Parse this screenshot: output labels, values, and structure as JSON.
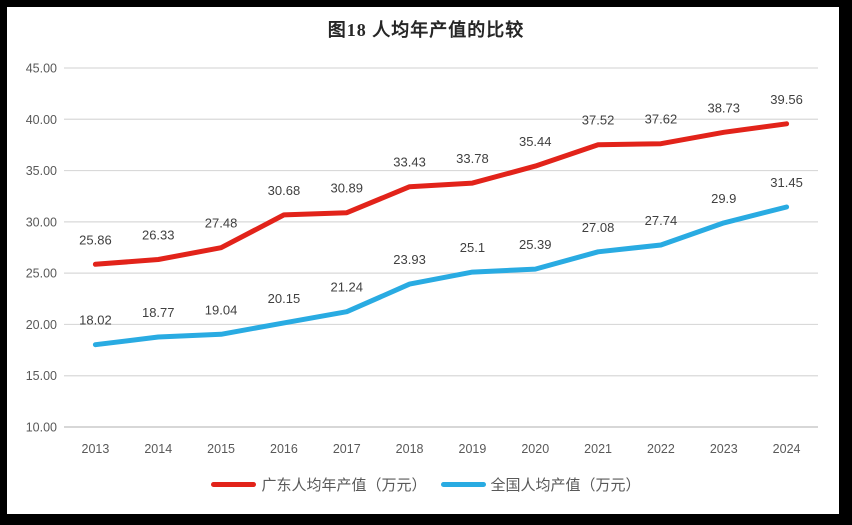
{
  "title": "图18 人均年产值的比较",
  "legend": [
    {
      "label": "广东人均年产值（万元）",
      "color": "#e2231a"
    },
    {
      "label": "全国人均产值（万元）",
      "color": "#29abe2"
    }
  ],
  "chart_data": {
    "type": "line",
    "title": "图18 人均年产值的比较",
    "categories": [
      "2013",
      "2014",
      "2015",
      "2016",
      "2017",
      "2018",
      "2019",
      "2020",
      "2021",
      "2022",
      "2023",
      "2024"
    ],
    "series": [
      {
        "name": "广东人均年产值（万元）",
        "color": "#e2231a",
        "values": [
          25.86,
          26.33,
          27.48,
          30.68,
          30.89,
          33.43,
          33.78,
          35.44,
          37.52,
          37.62,
          38.73,
          39.56
        ],
        "labels": [
          "25.86",
          "26.33",
          "27.48",
          "30.68",
          "30.89",
          "33.43",
          "33.78",
          "35.44",
          "37.52",
          "37.62",
          "38.73",
          "39.56"
        ]
      },
      {
        "name": "全国人均产值（万元）",
        "color": "#29abe2",
        "values": [
          18.02,
          18.77,
          19.04,
          20.15,
          21.24,
          23.93,
          25.1,
          25.39,
          27.08,
          27.74,
          29.9,
          31.45
        ],
        "labels": [
          "18.02",
          "18.77",
          "19.04",
          "20.15",
          "21.24",
          "23.93",
          "25.1",
          "25.39",
          "27.08",
          "27.74",
          "29.9",
          "31.45"
        ]
      }
    ],
    "ylim": [
      10,
      45
    ],
    "ytick_step": 5,
    "ytick_labels": [
      "10.00",
      "15.00",
      "20.00",
      "25.00",
      "30.00",
      "35.00",
      "40.00",
      "45.00"
    ],
    "xlabel": "",
    "ylabel": "",
    "grid": true,
    "legend_position": "bottom",
    "colors": {
      "gridline": "#d9d9d9",
      "axis_line": "#bfbfbf",
      "tick_label": "#595959",
      "data_label": "#404040",
      "frame_border": "#000000",
      "background": "#ffffff"
    }
  }
}
